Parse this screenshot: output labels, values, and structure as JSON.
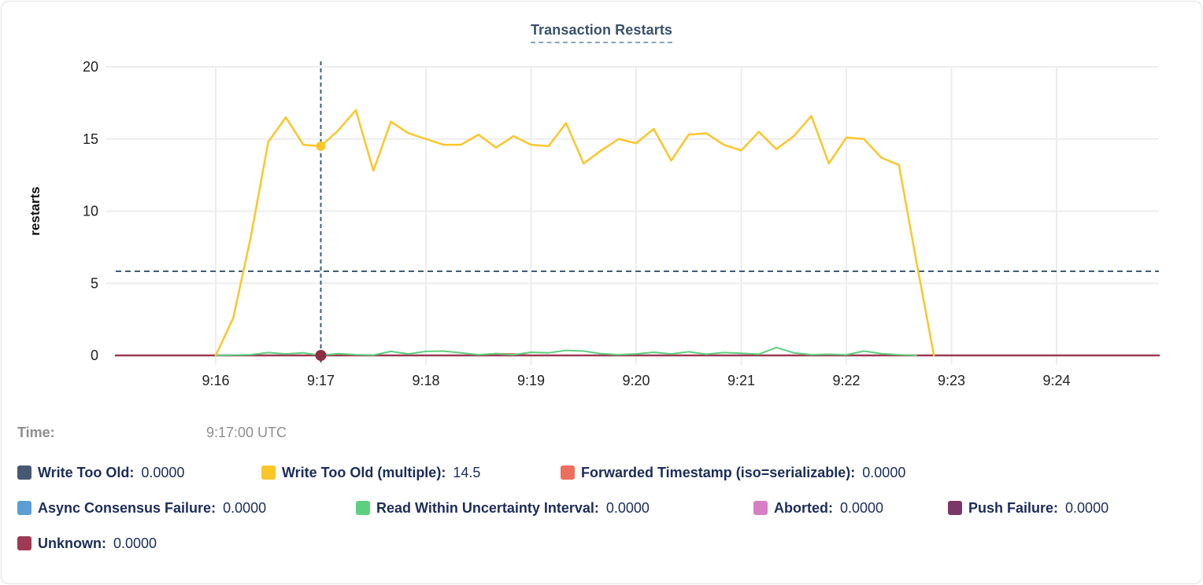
{
  "card": {
    "title": "Transaction Restarts"
  },
  "tooltip": {
    "time_label": "Time:",
    "time_value": "9:17:00 UTC"
  },
  "legend": {
    "rows": [
      [
        {
          "label": "Write Too Old:",
          "value": "0.0000",
          "color": "#475872"
        },
        {
          "label": "Write Too Old (multiple):",
          "value": "14.5",
          "color": "#fcc629"
        },
        {
          "label": "Forwarded Timestamp (iso=serializable):",
          "value": "0.0000",
          "color": "#ec6e5d"
        }
      ],
      [
        {
          "label": "Async Consensus Failure:",
          "value": "0.0000",
          "color": "#5a9fd4"
        },
        {
          "label": "Read Within Uncertainty Interval:",
          "value": "0.0000",
          "color": "#5ecf80"
        },
        {
          "label": "Aborted:",
          "value": "0.0000",
          "color": "#d77fc3"
        },
        {
          "label": "Push Failure:",
          "value": "0.0000",
          "color": "#7b3767"
        }
      ],
      [
        {
          "label": "Unknown:",
          "value": "0.0000",
          "color": "#9e3a55"
        }
      ]
    ]
  },
  "chart_data": {
    "type": "line",
    "title": "Transaction Restarts",
    "xlabel": "",
    "ylabel": "restarts",
    "ylim": [
      0,
      20
    ],
    "y_ticks": [
      0,
      5,
      10,
      15,
      20
    ],
    "x_ticks": [
      "9:16",
      "9:17",
      "9:18",
      "9:19",
      "9:20",
      "9:21",
      "9:22",
      "9:23",
      "9:24"
    ],
    "x_range": [
      "9:15:00",
      "9:25:00"
    ],
    "grid": true,
    "legend_position": "bottom",
    "hover": {
      "time": "9:17:00",
      "vertical_guide_time": "9:17:00",
      "horizontal_guide_value": 5.83,
      "guide_color": "#3f5d76"
    },
    "markers": [
      {
        "series": "Write Too Old (multiple)",
        "time": "9:17:00",
        "value": 14.5,
        "color": "#fcc629",
        "r": 6
      },
      {
        "series": "Unknown",
        "time": "9:17:00",
        "value": 0,
        "color": "#8e2f44",
        "r": 7
      }
    ],
    "series": [
      {
        "name": "Write Too Old",
        "color": "#475872",
        "points": [
          [
            "9:15:00",
            0
          ],
          [
            "9:25:00",
            0
          ]
        ]
      },
      {
        "name": "Forwarded Timestamp (iso=serializable)",
        "color": "#ec6e5d",
        "points": [
          [
            "9:15:00",
            0
          ],
          [
            "9:18:30",
            0
          ],
          [
            "9:18:40",
            0.12
          ],
          [
            "9:18:50",
            0.1
          ],
          [
            "9:19:00",
            0
          ],
          [
            "9:25:00",
            0
          ]
        ]
      },
      {
        "name": "Async Consensus Failure",
        "color": "#5a9fd4",
        "points": [
          [
            "9:15:00",
            0
          ],
          [
            "9:25:00",
            0
          ]
        ]
      },
      {
        "name": "Aborted",
        "color": "#d77fc3",
        "points": [
          [
            "9:15:00",
            0
          ],
          [
            "9:25:00",
            0
          ]
        ]
      },
      {
        "name": "Push Failure",
        "color": "#7b3767",
        "points": [
          [
            "9:15:00",
            0
          ],
          [
            "9:25:00",
            0
          ]
        ]
      },
      {
        "name": "Unknown",
        "color": "#9e3a55",
        "points": [
          [
            "9:15:00",
            0
          ],
          [
            "9:25:00",
            0
          ]
        ]
      },
      {
        "name": "Read Within Uncertainty Interval",
        "color": "#5ecf80",
        "points": [
          [
            "9:16:00",
            0
          ],
          [
            "9:16:10",
            0.02
          ],
          [
            "9:16:20",
            0.05
          ],
          [
            "9:16:30",
            0.2
          ],
          [
            "9:16:40",
            0.1
          ],
          [
            "9:16:50",
            0.18
          ],
          [
            "9:17:00",
            0
          ],
          [
            "9:17:10",
            0.12
          ],
          [
            "9:17:20",
            0.05
          ],
          [
            "9:17:30",
            0.02
          ],
          [
            "9:17:40",
            0.28
          ],
          [
            "9:17:50",
            0.1
          ],
          [
            "9:18:00",
            0.28
          ],
          [
            "9:18:10",
            0.3
          ],
          [
            "9:18:20",
            0.18
          ],
          [
            "9:18:30",
            0.05
          ],
          [
            "9:18:40",
            0.12
          ],
          [
            "9:18:50",
            0.05
          ],
          [
            "9:19:00",
            0.22
          ],
          [
            "9:19:10",
            0.18
          ],
          [
            "9:19:20",
            0.35
          ],
          [
            "9:19:30",
            0.3
          ],
          [
            "9:19:40",
            0.12
          ],
          [
            "9:19:50",
            0.05
          ],
          [
            "9:20:00",
            0.1
          ],
          [
            "9:20:10",
            0.22
          ],
          [
            "9:20:20",
            0.1
          ],
          [
            "9:20:30",
            0.25
          ],
          [
            "9:20:40",
            0.08
          ],
          [
            "9:20:50",
            0.2
          ],
          [
            "9:21:00",
            0.15
          ],
          [
            "9:21:10",
            0.08
          ],
          [
            "9:21:20",
            0.55
          ],
          [
            "9:21:30",
            0.18
          ],
          [
            "9:21:40",
            0.05
          ],
          [
            "9:21:50",
            0.08
          ],
          [
            "9:22:00",
            0.04
          ],
          [
            "9:22:10",
            0.3
          ],
          [
            "9:22:20",
            0.12
          ],
          [
            "9:22:30",
            0.04
          ],
          [
            "9:22:40",
            0
          ]
        ]
      },
      {
        "name": "Write Too Old (multiple)",
        "color": "#fcc629",
        "points": [
          [
            "9:16:00",
            0
          ],
          [
            "9:16:10",
            2.6
          ],
          [
            "9:16:20",
            8.2
          ],
          [
            "9:16:30",
            14.8
          ],
          [
            "9:16:40",
            16.5
          ],
          [
            "9:16:50",
            14.6
          ],
          [
            "9:17:00",
            14.5
          ],
          [
            "9:17:10",
            15.6
          ],
          [
            "9:17:20",
            17.0
          ],
          [
            "9:17:30",
            12.8
          ],
          [
            "9:17:40",
            16.2
          ],
          [
            "9:17:50",
            15.4
          ],
          [
            "9:18:00",
            15.0
          ],
          [
            "9:18:10",
            14.6
          ],
          [
            "9:18:20",
            14.6
          ],
          [
            "9:18:30",
            15.3
          ],
          [
            "9:18:40",
            14.4
          ],
          [
            "9:18:50",
            15.2
          ],
          [
            "9:19:00",
            14.6
          ],
          [
            "9:19:10",
            14.5
          ],
          [
            "9:19:20",
            16.1
          ],
          [
            "9:19:30",
            13.3
          ],
          [
            "9:19:40",
            14.2
          ],
          [
            "9:19:50",
            15.0
          ],
          [
            "9:20:00",
            14.7
          ],
          [
            "9:20:10",
            15.7
          ],
          [
            "9:20:20",
            13.5
          ],
          [
            "9:20:30",
            15.3
          ],
          [
            "9:20:40",
            15.4
          ],
          [
            "9:20:50",
            14.6
          ],
          [
            "9:21:00",
            14.2
          ],
          [
            "9:21:10",
            15.5
          ],
          [
            "9:21:20",
            14.3
          ],
          [
            "9:21:30",
            15.2
          ],
          [
            "9:21:40",
            16.6
          ],
          [
            "9:21:50",
            13.3
          ],
          [
            "9:22:00",
            15.1
          ],
          [
            "9:22:10",
            15.0
          ],
          [
            "9:22:20",
            13.7
          ],
          [
            "9:22:30",
            13.2
          ],
          [
            "9:22:40",
            6.5
          ],
          [
            "9:22:50",
            0
          ]
        ]
      }
    ]
  }
}
